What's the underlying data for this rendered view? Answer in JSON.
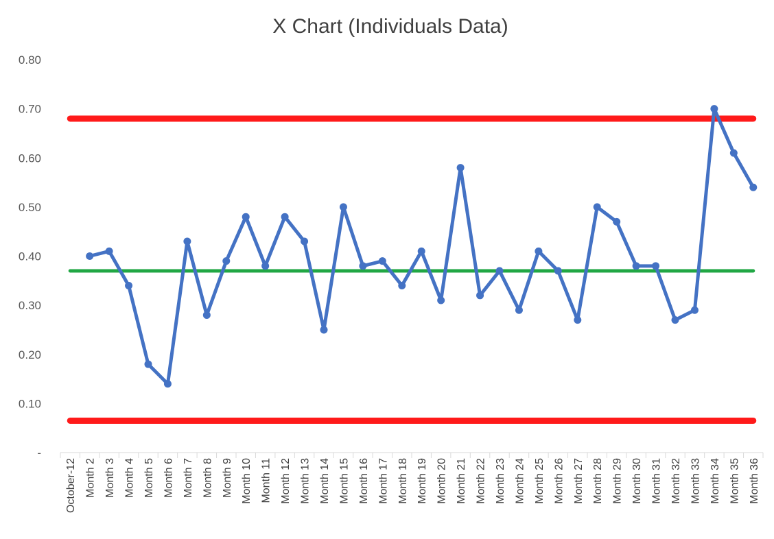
{
  "chart_data": {
    "type": "line",
    "title": "X Chart (Individuals Data)",
    "xlabel": "",
    "ylabel": "",
    "ylim": [
      0,
      0.8
    ],
    "y_ticks": [
      {
        "value": 0,
        "label": "-"
      },
      {
        "value": 0.1,
        "label": "0.10"
      },
      {
        "value": 0.2,
        "label": "0.20"
      },
      {
        "value": 0.3,
        "label": "0.30"
      },
      {
        "value": 0.4,
        "label": "0.40"
      },
      {
        "value": 0.5,
        "label": "0.50"
      },
      {
        "value": 0.6,
        "label": "0.60"
      },
      {
        "value": 0.7,
        "label": "0.70"
      },
      {
        "value": 0.8,
        "label": "0.80"
      }
    ],
    "grid": false,
    "legend": "none",
    "categories": [
      "October-12",
      "Month 2",
      "Month 3",
      "Month 4",
      "Month 5",
      "Month 6",
      "Month 7",
      "Month 8",
      "Month 9",
      "Month 10",
      "Month 11",
      "Month 12",
      "Month 13",
      "Month 14",
      "Month 15",
      "Month 16",
      "Month 17",
      "Month 18",
      "Month 19",
      "Month 20",
      "Month 21",
      "Month 22",
      "Month 23",
      "Month 24",
      "Month 25",
      "Month 26",
      "Month 27",
      "Month 28",
      "Month 29",
      "Month 30",
      "Month 31",
      "Month 32",
      "Month 33",
      "Month 34",
      "Month 35",
      "Month 36"
    ],
    "series": [
      {
        "color": "#4472C4",
        "values": [
          null,
          0.4,
          0.41,
          0.34,
          0.18,
          0.14,
          0.43,
          0.28,
          0.39,
          0.48,
          0.38,
          0.48,
          0.43,
          0.25,
          0.5,
          0.38,
          0.39,
          0.34,
          0.41,
          0.31,
          0.58,
          0.32,
          0.37,
          0.29,
          0.41,
          0.37,
          0.27,
          0.5,
          0.47,
          0.38,
          0.38,
          0.27,
          0.29,
          0.7,
          0.61,
          0.54
        ]
      }
    ],
    "control_limits": {
      "upper": {
        "value": 0.68,
        "color": "#FF1A1A"
      },
      "center": {
        "value": 0.37,
        "color": "#21A744"
      },
      "lower": {
        "value": 0.065,
        "color": "#FF1A1A"
      }
    }
  }
}
